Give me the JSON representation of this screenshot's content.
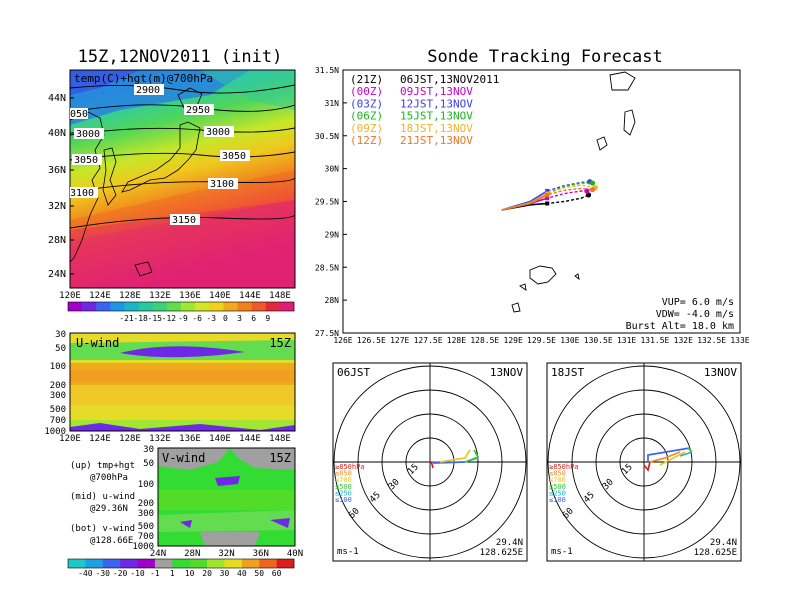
{
  "colors": {
    "scale1": [
      "#a000c8",
      "#6e28e6",
      "#3c64f0",
      "#1e96e6",
      "#1eb4c8",
      "#28c8a0",
      "#3cd278",
      "#64dc50",
      "#a0e632",
      "#d2e628",
      "#f0d21e",
      "#f0aa1e",
      "#f0821e",
      "#f05a28",
      "#e6283c",
      "#dc1e78"
    ],
    "scale2": [
      "#1ec8c8",
      "#1ea0e6",
      "#3c64f0",
      "#6e28e6",
      "#a000c8",
      "#a0a0a0",
      "#32dc32",
      "#50dc28",
      "#a0e628",
      "#e6dc1e",
      "#f0a01e",
      "#f0641e",
      "#dc1e1e"
    ],
    "tracks": [
      "#000000",
      "#c800c8",
      "#3c3cf0",
      "#1eb41e",
      "#f0b428",
      "#e67828"
    ]
  },
  "left": {
    "title": "15Z,12NOV2011 (init)",
    "map_label": "temp(C)+hgt(m)@700hPa",
    "contours": [
      "2900",
      "2950",
      "3000",
      "3000",
      "3050",
      "3050",
      "3100",
      "3100",
      "3150",
      "050"
    ],
    "lat_ticks": [
      "44N",
      "40N",
      "36N",
      "32N",
      "28N",
      "24N"
    ],
    "lon_ticks": [
      "120E",
      "124E",
      "128E",
      "132E",
      "136E",
      "140E",
      "144E",
      "148E"
    ],
    "colorbar_labels": [
      "-21",
      "-18",
      "-15",
      "-12",
      "-9",
      "-6",
      "-3",
      "0",
      "3",
      "6",
      "9"
    ],
    "uwind_label": "U-wind",
    "uwind_time": "15Z",
    "vwind_label": "V-wind",
    "vwind_time": "15Z",
    "p_ticks_u": [
      "30",
      "50",
      "100",
      "200",
      "300",
      "500",
      "700",
      "1000"
    ],
    "p_ticks_v": [
      "100",
      "200",
      "300",
      "500",
      "700",
      "1000"
    ],
    "p_ticks_v_top": [
      "30",
      "50"
    ],
    "vwind_lat_ticks": [
      "24N",
      "28N",
      "32N",
      "36N",
      "40N"
    ],
    "legend": [
      "(up) tmp+hgt",
      "@700hPa",
      "(mid) u-wind",
      "@29.36N",
      "(bot) v-wind",
      "@128.66E"
    ],
    "colorbar2_labels": [
      "-40",
      "-30",
      "-20",
      "-10",
      "-1",
      "1",
      "10",
      "20",
      "30",
      "40",
      "50",
      "60"
    ]
  },
  "right": {
    "title": "Sonde Tracking Forecast",
    "lat_ticks": [
      "31.5N",
      "31N",
      "30.5N",
      "30N",
      "29.5N",
      "29N",
      "28.5N",
      "28N",
      "27.5N"
    ],
    "lon_ticks": [
      "126E",
      "126.5E",
      "127E",
      "127.5E",
      "128E",
      "128.5E",
      "129E",
      "129.5E",
      "130E",
      "130.5E",
      "131E",
      "131.5E",
      "132E",
      "132.5E",
      "133E"
    ],
    "legend": [
      {
        "code": "(21Z)",
        "time": "06JST,13NOV2011"
      },
      {
        "code": "(00Z)",
        "time": "09JST,13NOV"
      },
      {
        "code": "(03Z)",
        "time": "12JST,13NOV"
      },
      {
        "code": "(06Z)",
        "time": "15JST,13NOV"
      },
      {
        "code": "(09Z)",
        "time": "18JST,13NOV"
      },
      {
        "code": "(12Z)",
        "time": "21JST,13NOV"
      }
    ],
    "params": [
      "VUP= 6.0 m/s",
      "VDW= -4.0 m/s",
      "Burst Alt= 18.0 km"
    ]
  },
  "hodo1": {
    "time": "06JST",
    "date": "13NOV",
    "ring_labels": [
      "15",
      "30",
      "45",
      "60"
    ],
    "levels": [
      "≥850hPa",
      "≤850",
      "≤700",
      "≤500",
      "≤250",
      "≤100"
    ],
    "unit": "ms-1",
    "lat": "29.4N",
    "lon": "128.625E"
  },
  "hodo2": {
    "time": "18JST",
    "date": "13NOV",
    "ring_labels": [
      "15",
      "30",
      "45",
      "60"
    ],
    "levels": [
      "≥850hPa",
      "≤850",
      "≤700",
      "≤500",
      "≤250",
      "≤100"
    ],
    "unit": "ms-1",
    "lat": "29.4N",
    "lon": "128.625E"
  },
  "chart_data": [
    {
      "type": "heatmap",
      "title": "15Z,12NOV2011 (init)",
      "variable": "temp(C)+hgt(m)@700hPa",
      "x_range": [
        "120E",
        "150E"
      ],
      "y_range": [
        "22N",
        "48N"
      ],
      "colorbar": [
        -21,
        -18,
        -15,
        -12,
        -9,
        -6,
        -3,
        0,
        3,
        6,
        9
      ],
      "contours": [
        2900,
        2950,
        3000,
        3050,
        3100,
        3150
      ]
    },
    {
      "type": "heatmap",
      "title": "U-wind",
      "x_range": [
        "120E",
        "150E"
      ],
      "y_pressure": [
        30,
        50,
        100,
        200,
        300,
        500,
        700,
        1000
      ]
    },
    {
      "type": "heatmap",
      "title": "V-wind",
      "x_range": [
        "24N",
        "40N"
      ],
      "y_pressure": [
        30,
        50,
        100,
        200,
        300,
        500,
        700,
        1000
      ],
      "colorbar": [
        -40,
        -30,
        -20,
        -10,
        -1,
        1,
        10,
        20,
        30,
        40,
        50,
        60
      ]
    },
    {
      "type": "line",
      "title": "Sonde Tracking Forecast",
      "xlim": [
        126,
        133
      ],
      "ylim": [
        27.5,
        31.5
      ],
      "series": [
        {
          "name": "06JST,13NOV2011",
          "x": [
            128.8,
            129.3,
            129.6,
            129.9,
            130.2,
            130.33
          ],
          "y": [
            29.37,
            29.45,
            29.47,
            29.5,
            29.55,
            29.6
          ]
        },
        {
          "name": "09JST,13NOV",
          "x": [
            128.8,
            129.3,
            129.6,
            129.9,
            130.2,
            130.3
          ],
          "y": [
            29.37,
            29.47,
            29.55,
            29.62,
            29.66,
            29.66
          ]
        },
        {
          "name": "12JST,13NOV",
          "x": [
            128.8,
            129.3,
            129.6,
            129.9,
            130.2,
            130.35
          ],
          "y": [
            29.37,
            29.5,
            29.66,
            29.74,
            29.79,
            29.8
          ]
        },
        {
          "name": "15JST,13NOV",
          "x": [
            128.8,
            129.3,
            129.6,
            129.9,
            130.2,
            130.4
          ],
          "y": [
            29.37,
            29.47,
            29.62,
            29.73,
            29.78,
            29.78
          ]
        },
        {
          "name": "18JST,13NOV",
          "x": [
            128.8,
            129.3,
            129.6,
            129.9,
            130.2,
            130.45
          ],
          "y": [
            29.37,
            29.48,
            29.62,
            29.71,
            29.75,
            29.71
          ]
        },
        {
          "name": "21JST,13NOV",
          "x": [
            128.8,
            129.3,
            129.6,
            129.9,
            130.2,
            130.4
          ],
          "y": [
            29.37,
            29.47,
            29.6,
            29.67,
            29.7,
            29.68
          ]
        }
      ]
    }
  ]
}
